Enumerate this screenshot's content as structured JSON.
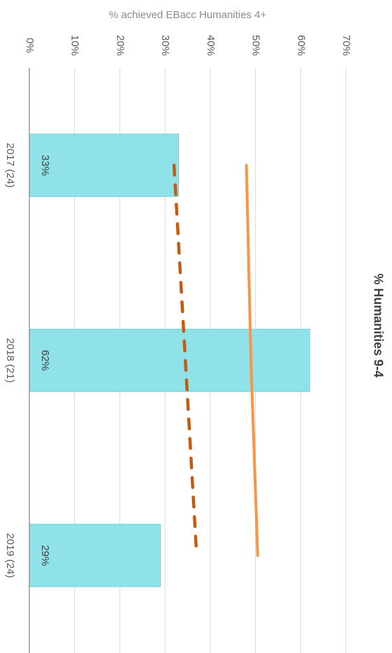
{
  "chart_data": {
    "type": "bar",
    "title": "% Humanities 9-4",
    "ylabel": "% achieved EBacc Humanities 4+",
    "xlabel": "",
    "categories": [
      "2017 (24)",
      "2018 (21)",
      "2019 (24)"
    ],
    "series": [
      {
        "type": "bar",
        "values": [
          33,
          62,
          29
        ],
        "data_labels": [
          "33%",
          "62%",
          "29%"
        ],
        "color": "#8ee2e8"
      },
      {
        "type": "line",
        "values": [
          48,
          49,
          50.5
        ],
        "color": "#f79646",
        "style": "solid"
      },
      {
        "type": "line",
        "values": [
          32,
          34.5,
          37
        ],
        "color": "#c55a11",
        "style": "dashed"
      }
    ],
    "ylim": [
      0,
      70
    ],
    "yticks": [
      0,
      10,
      20,
      30,
      40,
      50,
      60,
      70
    ],
    "ytick_labels": [
      "0%",
      "10%",
      "20%",
      "30%",
      "40%",
      "50%",
      "60%",
      "70%"
    ],
    "grid": true,
    "orientation": "rotated 90 degrees clockwise"
  }
}
